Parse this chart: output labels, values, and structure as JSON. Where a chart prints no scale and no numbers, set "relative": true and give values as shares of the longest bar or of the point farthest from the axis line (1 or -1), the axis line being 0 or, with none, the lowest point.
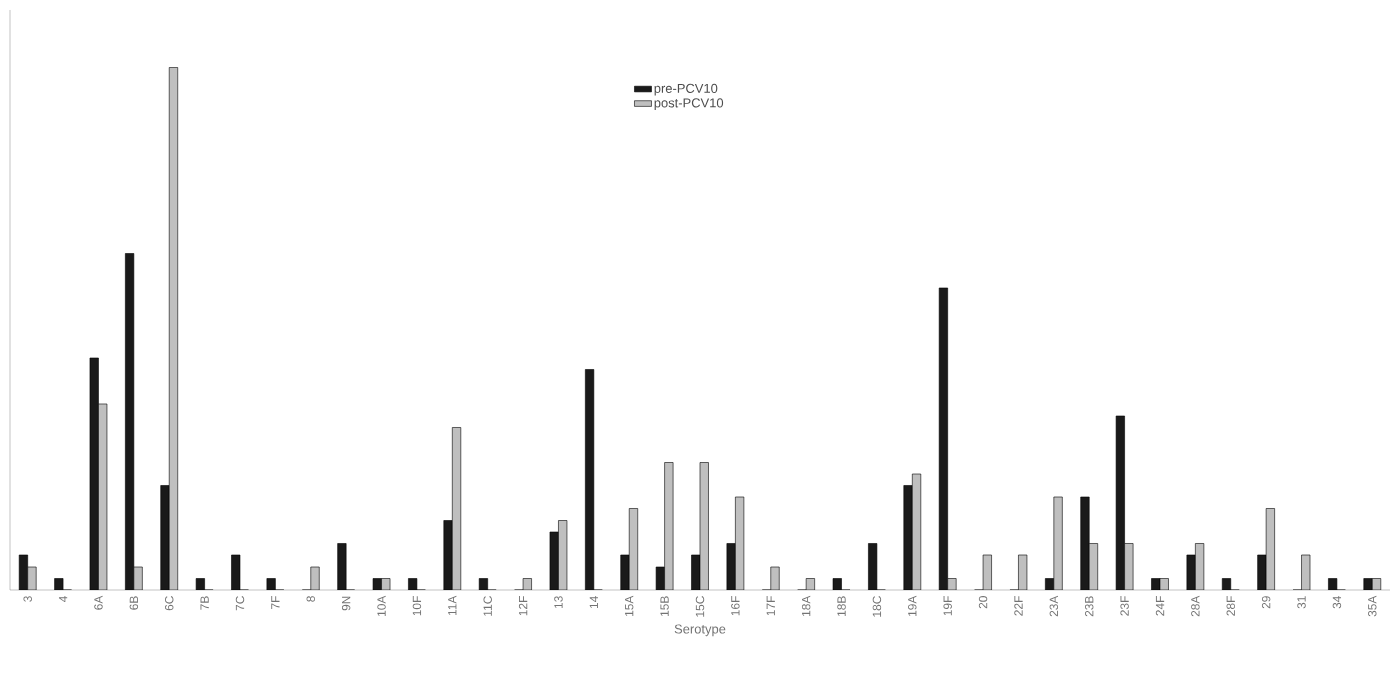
{
  "chart_data": {
    "type": "bar",
    "relative": true,
    "xlabel": "Serotype",
    "legend": "top",
    "categories": [
      "3",
      "4",
      "6A",
      "6B",
      "6C",
      "7B",
      "7C",
      "7F",
      "8",
      "9N",
      "10A",
      "10F",
      "11A",
      "11C",
      "12F",
      "13",
      "14",
      "15A",
      "15B",
      "15C",
      "16F",
      "17F",
      "18A",
      "18B",
      "18C",
      "19A",
      "19F",
      "20",
      "22F",
      "23A",
      "23B",
      "23F",
      "24F",
      "28A",
      "28F",
      "29",
      "31",
      "34",
      "35A"
    ],
    "series": [
      {
        "name": "pre-PCV10",
        "color": "#1a1a1a",
        "values": [
          0.067,
          0.022,
          0.444,
          0.644,
          0.2,
          0.022,
          0.067,
          0.022,
          0,
          0.089,
          0.022,
          0.022,
          0.133,
          0.022,
          0,
          0.111,
          0.422,
          0.067,
          0.044,
          0.067,
          0.089,
          0,
          0,
          0.022,
          0.089,
          0.2,
          0.578,
          0,
          0,
          0.022,
          0.178,
          0.333,
          0.022,
          0.067,
          0.022,
          0.067,
          0,
          0.022,
          0.022
        ]
      },
      {
        "name": "post-PCV10",
        "color": "#bfbfbf",
        "values": [
          0.044,
          0,
          0.356,
          0.044,
          1,
          0,
          0,
          0,
          0.044,
          0,
          0.022,
          0,
          0.311,
          0,
          0.022,
          0.133,
          0,
          0.156,
          0.244,
          0.244,
          0.178,
          0.044,
          0.022,
          0,
          0,
          0.222,
          0.022,
          0.067,
          0.067,
          0.178,
          0.089,
          0.089,
          0.022,
          0.089,
          0,
          0.156,
          0.067,
          0,
          0.022
        ]
      }
    ]
  }
}
